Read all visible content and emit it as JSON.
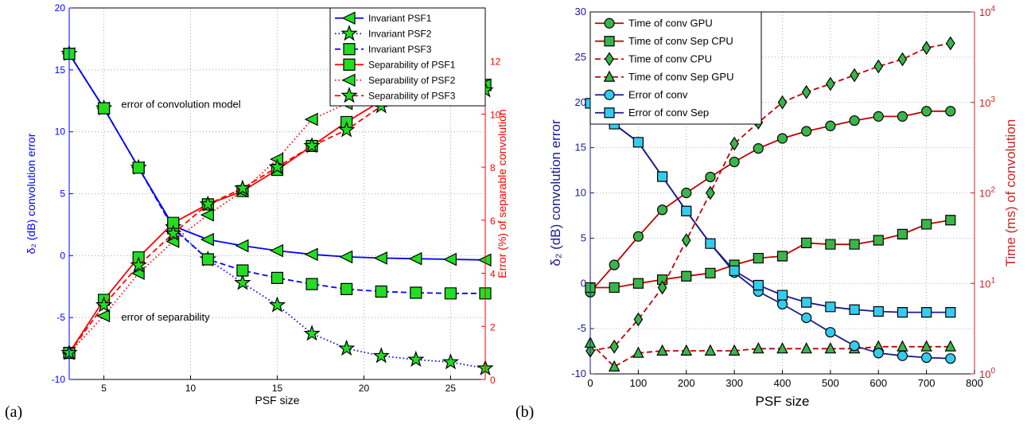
{
  "chart_data": [
    {
      "panel_label": "(a)",
      "type": "line",
      "xlabel": "PSF size",
      "ylabel": "δ₂ (dB) convolution error",
      "ylabel_right": "Error (%) of separable convolution",
      "xlim": [
        3,
        27
      ],
      "ylim": [
        -10,
        20
      ],
      "ylim_right": [
        0,
        14
      ],
      "xticks": [
        5,
        10,
        15,
        20,
        25
      ],
      "yticks": [
        -10,
        -5,
        0,
        5,
        10,
        15,
        20
      ],
      "yticks_right": [
        0,
        2,
        4,
        6,
        8,
        10,
        12
      ],
      "grid": true,
      "legend_position": "top-right",
      "annotations": [
        {
          "text": "error of convolution model",
          "x": 6,
          "y": 12.2
        },
        {
          "text": "error of separability",
          "x": 6,
          "y": -5
        }
      ],
      "series": [
        {
          "name": "Invariant PSF1",
          "axis": "left",
          "color": "#0000ff",
          "dash": "solid",
          "marker": "triangle-left",
          "x": [
            3,
            5,
            7,
            9,
            11,
            13,
            15,
            17,
            19,
            21,
            23,
            25,
            27
          ],
          "y": [
            16.3,
            11.9,
            7.1,
            2.4,
            1.3,
            0.8,
            0.4,
            0.1,
            -0.1,
            -0.2,
            -0.25,
            -0.3,
            -0.35
          ]
        },
        {
          "name": "Invariant PSF2",
          "axis": "left",
          "color": "#0000ff",
          "dash": "dotted",
          "marker": "star",
          "x": [
            3,
            5,
            7,
            9,
            11,
            13,
            15,
            17,
            19,
            21,
            23,
            25,
            27
          ],
          "y": [
            16.3,
            11.9,
            7.1,
            2.3,
            -0.3,
            -2.2,
            -4,
            -6.3,
            -7.5,
            -8.1,
            -8.4,
            -8.6,
            -9.1
          ]
        },
        {
          "name": "Invariant PSF3",
          "axis": "left",
          "color": "#0000ff",
          "dash": "dashed",
          "marker": "square",
          "x": [
            3,
            5,
            7,
            9,
            11,
            13,
            15,
            17,
            19,
            21,
            23,
            25,
            27
          ],
          "y": [
            16.3,
            11.9,
            7.1,
            2.2,
            -0.3,
            -1.2,
            -1.8,
            -2.3,
            -2.7,
            -2.9,
            -3,
            -3.05,
            -3.05
          ]
        },
        {
          "name": "Separability of PSF1",
          "axis": "right",
          "color": "#ff0000",
          "dash": "solid",
          "marker": "square",
          "x": [
            3,
            5,
            7,
            9,
            11,
            13,
            15,
            17,
            19,
            21,
            23,
            25,
            27
          ],
          "y": [
            1.0,
            3.0,
            4.6,
            5.9,
            6.6,
            7.1,
            7.9,
            8.8,
            9.7,
            10.5,
            10.9,
            11.1,
            11.1
          ]
        },
        {
          "name": "Separability of PSF2",
          "axis": "right",
          "color": "#ff0000",
          "dash": "dotted",
          "marker": "triangle-left",
          "x": [
            3,
            5,
            7,
            9,
            11,
            13,
            15,
            17,
            19,
            21,
            23,
            25,
            27
          ],
          "y": [
            1.0,
            2.4,
            4.0,
            5.2,
            6.2,
            7.1,
            8.3,
            9.8,
            10.4,
            10.8,
            11.0,
            11.1,
            11.1
          ]
        },
        {
          "name": "Separability of PSF3",
          "axis": "right",
          "color": "#ff0000",
          "dash": "dashed",
          "marker": "star",
          "x": [
            3,
            5,
            7,
            9,
            11,
            13,
            15,
            17,
            19,
            21,
            23,
            25,
            27
          ],
          "y": [
            1.0,
            2.8,
            4.3,
            5.5,
            6.6,
            7.2,
            8.0,
            8.8,
            9.4,
            10.3,
            10.9,
            11.1,
            10.9
          ]
        }
      ]
    },
    {
      "panel_label": "(b)",
      "type": "line",
      "xlabel": "PSF size",
      "ylabel": "δ₂ (dB) convolution error",
      "ylabel_right": "Time (ms) of convolution",
      "xlim": [
        0,
        800
      ],
      "ylim": [
        -10,
        30
      ],
      "ylim_right": [
        1,
        10000
      ],
      "yscale_right": "log",
      "xticks": [
        0,
        100,
        200,
        300,
        400,
        500,
        600,
        700,
        800
      ],
      "yticks": [
        -10,
        -5,
        0,
        5,
        10,
        15,
        20,
        25,
        30
      ],
      "yticks_right": [
        1,
        10,
        100,
        1000,
        10000
      ],
      "grid": true,
      "legend_position": "top-left",
      "series": [
        {
          "name": "Time of conv GPU",
          "axis": "right",
          "color": "#c00000",
          "dash": "solid",
          "marker": "circle",
          "x": [
            0,
            50,
            100,
            150,
            200,
            250,
            300,
            350,
            400,
            450,
            500,
            550,
            600,
            650,
            700,
            750
          ],
          "y": [
            8,
            16,
            33,
            65,
            100,
            150,
            220,
            310,
            400,
            480,
            550,
            630,
            700,
            700,
            800,
            800
          ]
        },
        {
          "name": "Time of conv Sep CPU",
          "axis": "right",
          "color": "#c00000",
          "dash": "solid",
          "marker": "square",
          "x": [
            0,
            50,
            100,
            150,
            200,
            250,
            300,
            350,
            400,
            450,
            500,
            550,
            600,
            650,
            700,
            750
          ],
          "y": [
            9,
            9,
            10,
            11,
            12,
            13,
            16,
            19,
            20,
            28,
            27,
            27,
            30,
            35,
            45,
            50
          ]
        },
        {
          "name": "Time of conv CPU",
          "axis": "right",
          "color": "#c00000",
          "dash": "dashed",
          "marker": "diamond",
          "x": [
            0,
            50,
            100,
            150,
            200,
            250,
            300,
            350,
            400,
            450,
            500,
            550,
            600,
            650,
            700,
            750
          ],
          "y": [
            1.8,
            2,
            4,
            9,
            30,
            100,
            350,
            600,
            1000,
            1300,
            1600,
            2000,
            2500,
            3000,
            4000,
            4500
          ]
        },
        {
          "name": "Time of conv Sep GPU",
          "axis": "right",
          "color": "#c00000",
          "dash": "dashed",
          "marker": "triangle-up",
          "x": [
            0,
            50,
            100,
            150,
            200,
            250,
            300,
            350,
            400,
            450,
            500,
            550,
            600,
            650,
            700,
            750
          ],
          "y": [
            2.2,
            1.2,
            1.7,
            1.8,
            1.8,
            1.8,
            1.8,
            1.9,
            1.9,
            1.9,
            1.9,
            1.9,
            2,
            2,
            2,
            2
          ]
        },
        {
          "name": "Error of conv",
          "axis": "left",
          "color": "#1a1a8c",
          "dash": "solid",
          "marker": "circle",
          "x": [
            0,
            50,
            100,
            150,
            200,
            250,
            300,
            350,
            400,
            450,
            500,
            550,
            600,
            650,
            700,
            750
          ],
          "y": [
            19.9,
            17.6,
            15.6,
            11.8,
            8.0,
            4.4,
            1.2,
            -0.9,
            -2.3,
            -3.8,
            -5.4,
            -6.9,
            -7.7,
            -8.0,
            -8.2,
            -8.3
          ]
        },
        {
          "name": "Error of conv Sep",
          "axis": "left",
          "color": "#1a1a8c",
          "dash": "solid",
          "marker": "square",
          "x": [
            0,
            50,
            100,
            150,
            200,
            250,
            300,
            350,
            400,
            450,
            500,
            550,
            600,
            650,
            700,
            750
          ],
          "y": [
            19.9,
            17.6,
            15.6,
            11.8,
            8.0,
            4.4,
            1.4,
            -0.2,
            -1.3,
            -2.1,
            -2.6,
            -2.9,
            -3.1,
            -3.2,
            -3.2,
            -3.2
          ]
        }
      ]
    }
  ]
}
